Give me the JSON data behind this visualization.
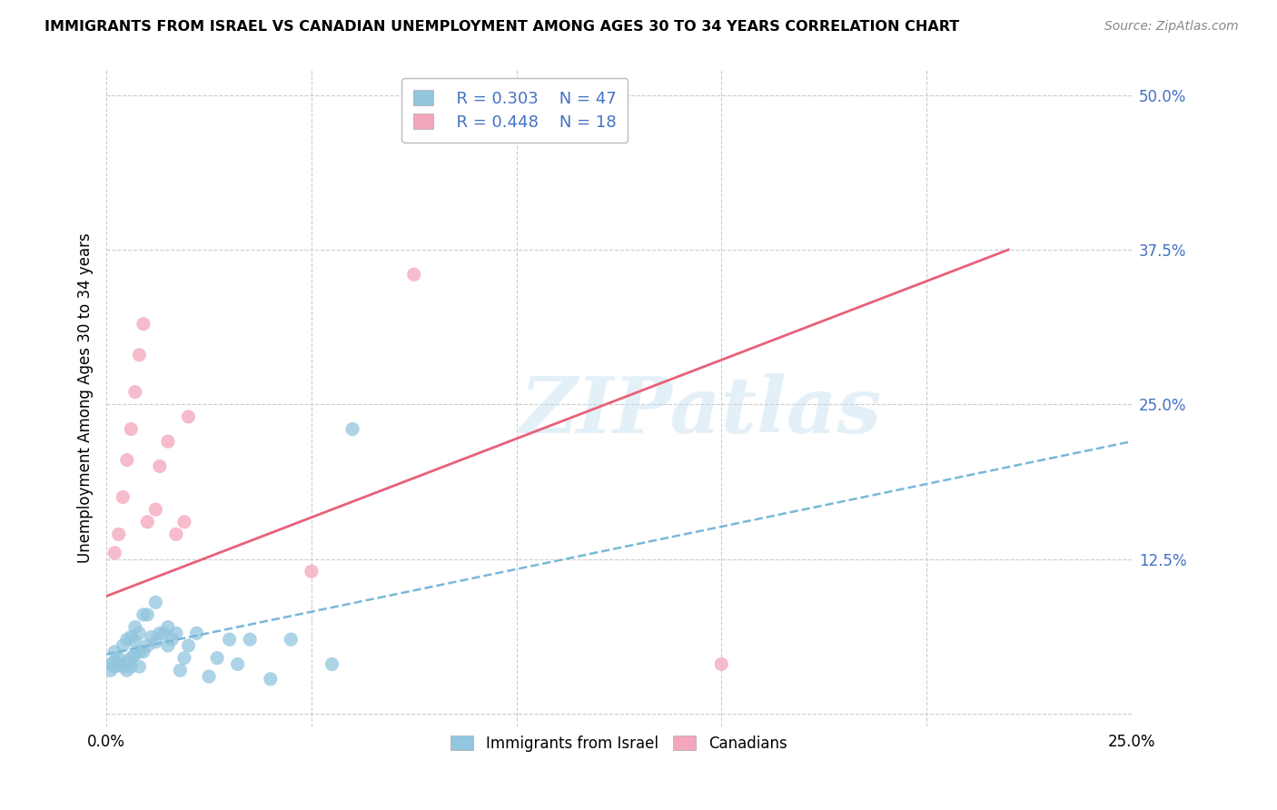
{
  "title": "IMMIGRANTS FROM ISRAEL VS CANADIAN UNEMPLOYMENT AMONG AGES 30 TO 34 YEARS CORRELATION CHART",
  "source": "Source: ZipAtlas.com",
  "ylabel": "Unemployment Among Ages 30 to 34 years",
  "legend_r1": "R = 0.303",
  "legend_n1": "N = 47",
  "legend_r2": "R = 0.448",
  "legend_n2": "N = 18",
  "color_blue": "#92c5de",
  "color_pink": "#f4a6bc",
  "color_line_blue": "#7ab8d8",
  "color_line_pink": "#e8607a",
  "background": "#ffffff",
  "watermark": "ZIPatlas",
  "xlim": [
    0.0,
    0.25
  ],
  "ylim": [
    -0.01,
    0.52
  ],
  "blue_scatter_x": [
    0.001,
    0.001,
    0.002,
    0.002,
    0.002,
    0.003,
    0.003,
    0.004,
    0.004,
    0.005,
    0.005,
    0.005,
    0.006,
    0.006,
    0.006,
    0.007,
    0.007,
    0.007,
    0.008,
    0.008,
    0.008,
    0.009,
    0.009,
    0.01,
    0.01,
    0.011,
    0.012,
    0.012,
    0.013,
    0.014,
    0.015,
    0.015,
    0.016,
    0.017,
    0.018,
    0.019,
    0.02,
    0.022,
    0.025,
    0.027,
    0.03,
    0.032,
    0.035,
    0.04,
    0.045,
    0.055,
    0.06
  ],
  "blue_scatter_y": [
    0.035,
    0.04,
    0.038,
    0.042,
    0.05,
    0.04,
    0.045,
    0.038,
    0.055,
    0.042,
    0.035,
    0.06,
    0.038,
    0.045,
    0.062,
    0.048,
    0.058,
    0.07,
    0.038,
    0.05,
    0.065,
    0.05,
    0.08,
    0.055,
    0.08,
    0.062,
    0.058,
    0.09,
    0.065,
    0.065,
    0.07,
    0.055,
    0.06,
    0.065,
    0.035,
    0.045,
    0.055,
    0.065,
    0.03,
    0.045,
    0.06,
    0.04,
    0.06,
    0.028,
    0.06,
    0.04,
    0.23
  ],
  "pink_scatter_x": [
    0.002,
    0.003,
    0.004,
    0.005,
    0.006,
    0.007,
    0.008,
    0.009,
    0.01,
    0.012,
    0.013,
    0.015,
    0.017,
    0.019,
    0.05,
    0.075,
    0.15,
    0.02
  ],
  "pink_scatter_y": [
    0.13,
    0.145,
    0.175,
    0.205,
    0.23,
    0.26,
    0.29,
    0.315,
    0.155,
    0.165,
    0.2,
    0.22,
    0.145,
    0.155,
    0.115,
    0.355,
    0.04,
    0.24
  ],
  "blue_line_x": [
    0.0,
    0.25
  ],
  "blue_line_y": [
    0.048,
    0.22
  ],
  "pink_line_x": [
    0.0,
    0.22
  ],
  "pink_line_y": [
    0.095,
    0.375
  ]
}
